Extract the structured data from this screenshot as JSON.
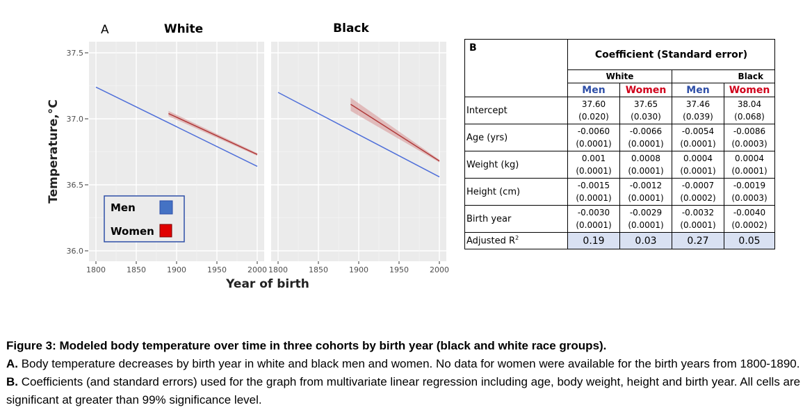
{
  "panel_a": {
    "letter": "A",
    "left_title": "White",
    "right_title": "Black",
    "y_axis_title": "Temperature,°C",
    "x_axis_title": "Year of birth",
    "legend": [
      {
        "label": "Men",
        "color": "#4472c4"
      },
      {
        "label": "Women",
        "color": "#e00000"
      }
    ]
  },
  "chart_data": {
    "type": "line",
    "ylim": [
      36.0,
      37.5
    ],
    "yticks": [
      "36.0",
      "36.5",
      "37.0",
      "37.5"
    ],
    "xlim": [
      1800,
      2000
    ],
    "xticks_left": [
      "1800",
      "1850",
      "1900",
      "1950",
      "2000"
    ],
    "xticks_right": [
      "1800",
      "1850",
      "1900",
      "1950",
      "2000"
    ],
    "facets": [
      {
        "name": "White",
        "series": [
          {
            "name": "Men",
            "color": "#4f6fd9",
            "x": [
              1800,
              2000
            ],
            "y": [
              37.24,
              36.64
            ],
            "band": [
              [
                1800,
                37.24,
                37.24
              ],
              [
                2000,
                36.64,
                36.64
              ]
            ]
          },
          {
            "name": "Women",
            "color": "#b03a3a",
            "x": [
              1890,
              2000
            ],
            "y": [
              37.04,
              36.73
            ],
            "band": [
              [
                1890,
                37.02,
                37.06
              ],
              [
                2000,
                36.72,
                36.74
              ]
            ]
          }
        ]
      },
      {
        "name": "Black",
        "series": [
          {
            "name": "Men",
            "color": "#4f6fd9",
            "x": [
              1800,
              2000
            ],
            "y": [
              37.2,
              36.56
            ],
            "band": [
              [
                1800,
                37.2,
                37.2
              ],
              [
                2000,
                36.56,
                36.56
              ]
            ]
          },
          {
            "name": "Women",
            "color": "#b03a3a",
            "x": [
              1890,
              2000
            ],
            "y": [
              37.11,
              36.68
            ],
            "band": [
              [
                1890,
                37.06,
                37.16
              ],
              [
                2000,
                36.67,
                36.69
              ]
            ]
          }
        ]
      }
    ]
  },
  "panel_b": {
    "letter": "B",
    "header": "Coefficient (Standard error)",
    "groups": [
      "White",
      "Black"
    ],
    "columns": [
      "Men",
      "Women",
      "Men",
      "Women"
    ],
    "rows": [
      {
        "label": "Intercept",
        "values": [
          [
            "37.60",
            "(0.020)"
          ],
          [
            "37.65",
            "(0.030)"
          ],
          [
            "37.46",
            "(0.039)"
          ],
          [
            "38.04",
            "(0.068)"
          ]
        ]
      },
      {
        "label": "Age (yrs)",
        "values": [
          [
            "-0.0060",
            "(0.0001)"
          ],
          [
            "-0.0066",
            "(0.0001)"
          ],
          [
            "-0.0054",
            "(0.0001)"
          ],
          [
            "-0.0086",
            "(0.0003)"
          ]
        ]
      },
      {
        "label": "Weight (kg)",
        "values": [
          [
            "0.001",
            "(0.0001)"
          ],
          [
            "0.0008",
            "(0.0001)"
          ],
          [
            "0.0004",
            "(0.0001)"
          ],
          [
            "0.0004",
            "(0.0001)"
          ]
        ]
      },
      {
        "label": "Height (cm)",
        "values": [
          [
            "-0.0015",
            "(0.0001)"
          ],
          [
            "-0.0012",
            "(0.0001)"
          ],
          [
            "-0.0007",
            "(0.0002)"
          ],
          [
            "-0.0019",
            "(0.0003)"
          ]
        ]
      },
      {
        "label": "Birth year",
        "values": [
          [
            "-0.0030",
            "(0.0001)"
          ],
          [
            "-0.0029",
            "(0.0001)"
          ],
          [
            "-0.0032",
            "(0.0001)"
          ],
          [
            "-0.0040",
            "(0.0002)"
          ]
        ]
      }
    ],
    "r2_label": "Adjusted R",
    "r2_sup": "2",
    "r2_values": [
      "0.19",
      "0.03",
      "0.27",
      "0.05"
    ]
  },
  "caption": {
    "title": "Figure 3: Modeled body temperature over time in three cohorts by birth year (black and white race groups).",
    "a_label": "A.",
    "a_text": " Body temperature decreases by birth year in white and black men and women.  No data for women were available for the birth years from 1800-1890. ",
    "b_label": "B.",
    "b_text": " Coefficients (and standard errors) used for the graph from multivariate linear regression including age, body weight, height and birth year.  All cells are significant at greater than 99% significance level."
  }
}
